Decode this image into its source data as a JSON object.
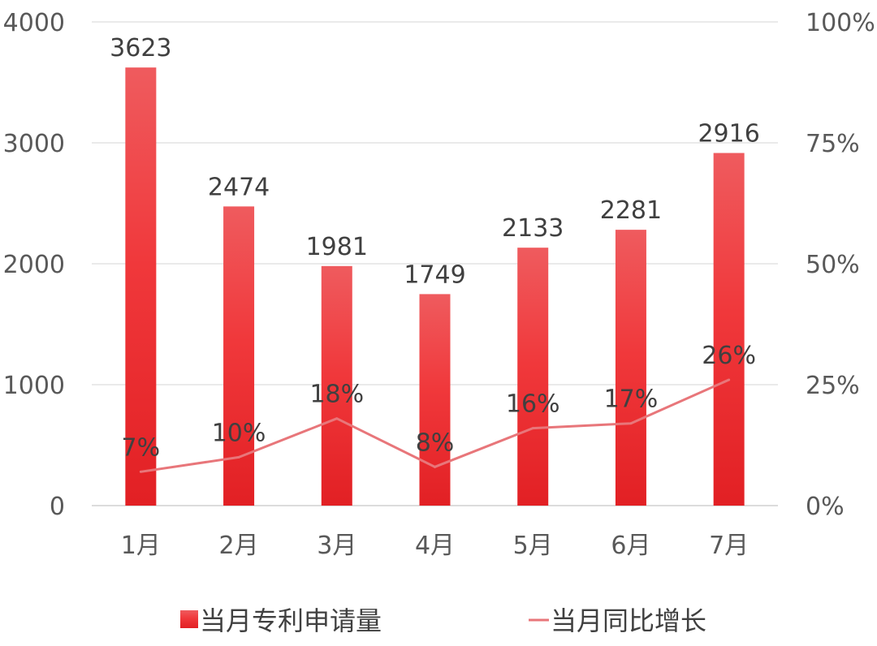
{
  "chart_data": {
    "type": "bar",
    "categories": [
      "1月",
      "2月",
      "3月",
      "4月",
      "5月",
      "6月",
      "7月"
    ],
    "series": [
      {
        "name": "当月专利申请量",
        "type": "bar",
        "axis": "left",
        "values": [
          3623,
          2474,
          1981,
          1749,
          2133,
          2281,
          2916
        ],
        "labels": [
          "3623",
          "2474",
          "1981",
          "1749",
          "2133",
          "2281",
          "2916"
        ],
        "color": "#e8262b"
      },
      {
        "name": "当月同比增长",
        "type": "line",
        "axis": "right",
        "values": [
          7,
          10,
          18,
          8,
          16,
          17,
          26
        ],
        "labels": [
          "7%",
          "10%",
          "18%",
          "8%",
          "16%",
          "17%",
          "26%"
        ],
        "color": "#e8767a"
      }
    ],
    "y_left": {
      "range": [
        0,
        4000
      ],
      "ticks": [
        "0",
        "1000",
        "2000",
        "3000",
        "4000"
      ]
    },
    "y_right": {
      "range": [
        0,
        100
      ],
      "ticks": [
        "0%",
        "25%",
        "50%",
        "75%",
        "100%"
      ]
    },
    "grid": true,
    "legend_position": "bottom"
  }
}
